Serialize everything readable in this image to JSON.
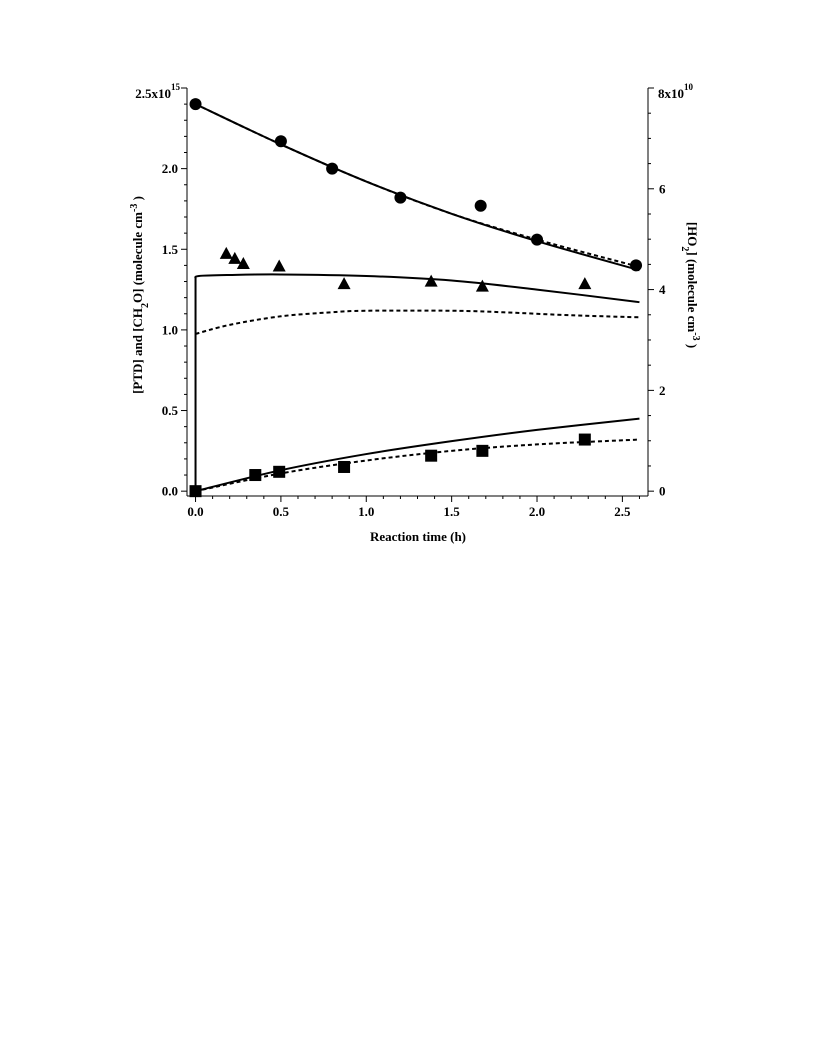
{
  "chart_data": {
    "type": "scatter",
    "xlabel": "Reaction time (h)",
    "ylabel_left": {
      "parts": [
        "[PTD] and [CH",
        "2",
        "O] (molecule cm",
        "-3",
        " )"
      ],
      "full": "[PTD] and [CH2O] (molecule cm-3 )"
    },
    "ylabel_right": {
      "parts": [
        "[HO",
        "2",
        "] (molecule cm",
        "-3",
        " )"
      ],
      "full": "[HO2] (molecule cm-3 )"
    },
    "xlim": [
      -0.05,
      2.65
    ],
    "ylim_left": [
      -30000000000000.0,
      2500000000000000.0
    ],
    "ylim_right": [
      -960000000.0,
      80000000000.0
    ],
    "x_ticks": [
      "0.0",
      "0.5",
      "1.0",
      "1.5",
      "2.0",
      "2.5"
    ],
    "y_left_ticks": [
      "0.0",
      "0.5",
      "1.0",
      "1.5",
      "2.0"
    ],
    "y_left_top": {
      "mantissa": "2.5x10",
      "exp": "15"
    },
    "y_right_ticks": [
      "0",
      "2",
      "4",
      "6"
    ],
    "y_right_top": {
      "mantissa": "8x10",
      "exp": "10"
    },
    "series": [
      {
        "marker": "circle",
        "axis": "left",
        "x": [
          0.0,
          0.5,
          0.8,
          1.2,
          1.67,
          2.0,
          2.58
        ],
        "y": [
          2400000000000000.0,
          2170000000000000.0,
          2000000000000000.0,
          1820000000000000.0,
          1770000000000000.0,
          1560000000000000.0,
          1400000000000000.0
        ]
      },
      {
        "marker": "triangle",
        "axis": "right",
        "x": [
          0.18,
          0.23,
          0.28,
          0.49,
          0.87,
          1.38,
          1.68,
          2.28
        ],
        "y": [
          47000000000.0,
          46000000000.0,
          45000000000.0,
          44500000000.0,
          41000000000.0,
          41500000000.0,
          40500000000.0,
          41000000000.0
        ]
      },
      {
        "marker": "square",
        "axis": "left",
        "x": [
          0.0,
          0.35,
          0.49,
          0.87,
          1.38,
          1.68,
          2.28
        ],
        "y": [
          0.0,
          100000000000000.0,
          120000000000000.0,
          150000000000000.0,
          220000000000000.0,
          250000000000000.0,
          320000000000000.0
        ]
      }
    ],
    "model_curves": [
      {
        "style": "solid",
        "axis": "left",
        "x": [
          0.0,
          0.5,
          1.0,
          1.5,
          2.0,
          2.6
        ],
        "y": [
          2400000000000000.0,
          2150000000000000.0,
          1920000000000000.0,
          1720000000000000.0,
          1550000000000000.0,
          1370000000000000.0
        ]
      },
      {
        "style": "dashed",
        "axis": "left",
        "x": [
          0.0,
          0.5,
          1.0,
          1.5,
          2.0,
          2.6
        ],
        "y": [
          2400000000000000.0,
          2150000000000000.0,
          1920000000000000.0,
          1720000000000000.0,
          1560000000000000.0,
          1390000000000000.0
        ]
      },
      {
        "style": "solid",
        "axis": "right",
        "x": [
          0.0,
          0.0,
          0.02,
          0.2,
          0.5,
          1.0,
          1.5,
          2.0,
          2.6
        ],
        "y": [
          0.0,
          42200000000.0,
          42700000000.0,
          42900000000.0,
          43000000000.0,
          42700000000.0,
          41800000000.0,
          40000000000.0,
          37500000000.0
        ]
      },
      {
        "style": "dashed",
        "axis": "right",
        "x": [
          0.0,
          0.2,
          0.5,
          0.8,
          1.0,
          1.5,
          1.8,
          2.2,
          2.6
        ],
        "y": [
          31200000000.0,
          33000000000.0,
          34700000000.0,
          35500000000.0,
          35800000000.0,
          35800000000.0,
          35500000000.0,
          34900000000.0,
          34500000000.0
        ]
      },
      {
        "style": "solid",
        "axis": "left",
        "x": [
          0.0,
          0.5,
          1.0,
          1.5,
          2.0,
          2.6
        ],
        "y": [
          0.0,
          130000000000000.0,
          230000000000000.0,
          310000000000000.0,
          380000000000000.0,
          450000000000000.0
        ]
      },
      {
        "style": "dashed",
        "axis": "left",
        "x": [
          0.0,
          0.5,
          1.0,
          1.5,
          2.0,
          2.6
        ],
        "y": [
          0.0,
          110000000000000.0,
          190000000000000.0,
          250000000000000.0,
          290000000000000.0,
          320000000000000.0
        ]
      }
    ]
  }
}
